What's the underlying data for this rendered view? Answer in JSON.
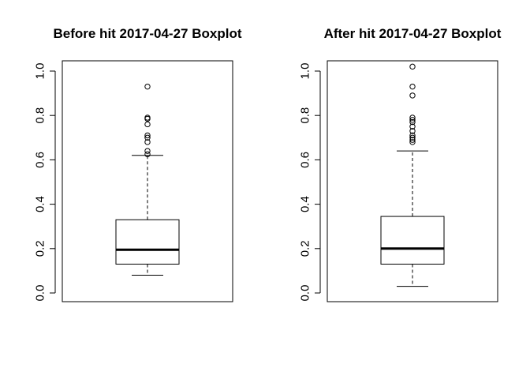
{
  "chart_data": [
    {
      "type": "boxplot",
      "title": "Before hit 2017-04-27 Boxplot",
      "xlabel": "",
      "ylabel": "",
      "ylim": [
        -0.04,
        1.04
      ],
      "yticks": [
        0.0,
        0.2,
        0.4,
        0.6,
        0.8,
        1.0
      ],
      "ytick_labels": [
        "0.0",
        "0.2",
        "0.4",
        "0.6",
        "0.8",
        "1.0"
      ],
      "box": {
        "whisker_low": 0.08,
        "q1": 0.13,
        "median": 0.195,
        "q3": 0.33,
        "whisker_high": 0.62
      },
      "outliers": [
        0.625,
        0.64,
        0.68,
        0.7,
        0.71,
        0.76,
        0.785,
        0.79,
        0.93
      ]
    },
    {
      "type": "boxplot",
      "title": "After hit 2017-04-27 Boxplot",
      "xlabel": "",
      "ylabel": "",
      "ylim": [
        -0.04,
        1.04
      ],
      "yticks": [
        0.0,
        0.2,
        0.4,
        0.6,
        0.8,
        1.0
      ],
      "ytick_labels": [
        "0.0",
        "0.2",
        "0.4",
        "0.6",
        "0.8",
        "1.0"
      ],
      "box": {
        "whisker_low": 0.03,
        "q1": 0.13,
        "median": 0.2,
        "q3": 0.345,
        "whisker_high": 0.64
      },
      "outliers": [
        0.68,
        0.69,
        0.7,
        0.71,
        0.73,
        0.75,
        0.77,
        0.78,
        0.79,
        0.89,
        0.93,
        1.02
      ]
    }
  ]
}
